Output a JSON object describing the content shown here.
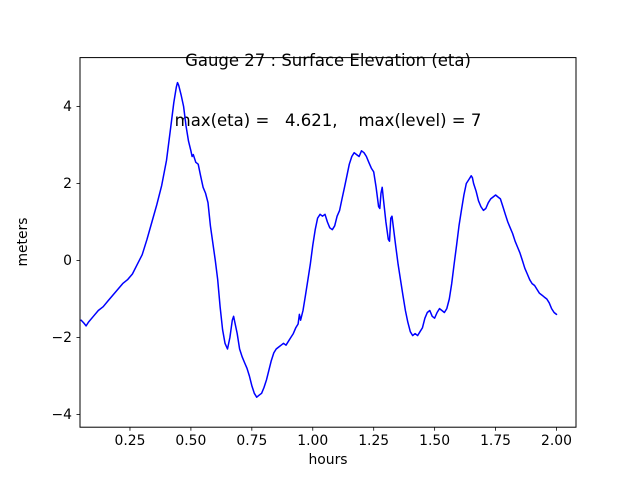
{
  "chart_data": {
    "type": "line",
    "title": "Gauge 27 : Surface Elevation (eta)",
    "subtitle": "max(eta) =   4.621,    max(level) = 7",
    "xlabel": "hours",
    "ylabel": "meters",
    "max_eta": 4.621,
    "max_level": 7,
    "xlim": [
      0.045,
      2.08
    ],
    "ylim": [
      -4.33,
      5.27
    ],
    "line_color": "#0000ff",
    "grid": false,
    "legend": "none",
    "xticks": [
      {
        "value": 0.25,
        "label": "0.25"
      },
      {
        "value": 0.5,
        "label": "0.50"
      },
      {
        "value": 0.75,
        "label": "0.75"
      },
      {
        "value": 1.0,
        "label": "1.00"
      },
      {
        "value": 1.25,
        "label": "1.25"
      },
      {
        "value": 1.5,
        "label": "1.50"
      },
      {
        "value": 1.75,
        "label": "1.75"
      },
      {
        "value": 2.0,
        "label": "2.00"
      }
    ],
    "yticks": [
      {
        "value": -4,
        "label": "−4"
      },
      {
        "value": -2,
        "label": "−2"
      },
      {
        "value": 0,
        "label": "0"
      },
      {
        "value": 2,
        "label": "2"
      },
      {
        "value": 4,
        "label": "4"
      }
    ],
    "series": [
      {
        "name": "eta",
        "points": [
          [
            0.05,
            -1.55
          ],
          [
            0.06,
            -1.62
          ],
          [
            0.07,
            -1.7
          ],
          [
            0.08,
            -1.6
          ],
          [
            0.1,
            -1.45
          ],
          [
            0.12,
            -1.3
          ],
          [
            0.14,
            -1.2
          ],
          [
            0.16,
            -1.05
          ],
          [
            0.18,
            -0.9
          ],
          [
            0.2,
            -0.75
          ],
          [
            0.22,
            -0.6
          ],
          [
            0.24,
            -0.5
          ],
          [
            0.26,
            -0.35
          ],
          [
            0.28,
            -0.1
          ],
          [
            0.3,
            0.15
          ],
          [
            0.32,
            0.55
          ],
          [
            0.34,
            1.0
          ],
          [
            0.36,
            1.45
          ],
          [
            0.38,
            1.95
          ],
          [
            0.4,
            2.6
          ],
          [
            0.42,
            3.6
          ],
          [
            0.43,
            4.1
          ],
          [
            0.44,
            4.5
          ],
          [
            0.445,
            4.62
          ],
          [
            0.45,
            4.55
          ],
          [
            0.46,
            4.3
          ],
          [
            0.47,
            4.0
          ],
          [
            0.48,
            3.5
          ],
          [
            0.49,
            3.1
          ],
          [
            0.5,
            2.85
          ],
          [
            0.505,
            2.7
          ],
          [
            0.51,
            2.75
          ],
          [
            0.52,
            2.55
          ],
          [
            0.53,
            2.5
          ],
          [
            0.54,
            2.2
          ],
          [
            0.55,
            1.9
          ],
          [
            0.56,
            1.75
          ],
          [
            0.57,
            1.5
          ],
          [
            0.58,
            0.9
          ],
          [
            0.6,
            0.0
          ],
          [
            0.61,
            -0.5
          ],
          [
            0.62,
            -1.2
          ],
          [
            0.63,
            -1.8
          ],
          [
            0.64,
            -2.15
          ],
          [
            0.65,
            -2.3
          ],
          [
            0.66,
            -2.0
          ],
          [
            0.67,
            -1.55
          ],
          [
            0.675,
            -1.45
          ],
          [
            0.68,
            -1.6
          ],
          [
            0.69,
            -1.9
          ],
          [
            0.7,
            -2.3
          ],
          [
            0.71,
            -2.5
          ],
          [
            0.72,
            -2.65
          ],
          [
            0.73,
            -2.8
          ],
          [
            0.74,
            -3.0
          ],
          [
            0.75,
            -3.25
          ],
          [
            0.76,
            -3.45
          ],
          [
            0.77,
            -3.55
          ],
          [
            0.78,
            -3.5
          ],
          [
            0.79,
            -3.45
          ],
          [
            0.8,
            -3.3
          ],
          [
            0.81,
            -3.1
          ],
          [
            0.82,
            -2.85
          ],
          [
            0.83,
            -2.6
          ],
          [
            0.84,
            -2.4
          ],
          [
            0.85,
            -2.3
          ],
          [
            0.86,
            -2.25
          ],
          [
            0.87,
            -2.2
          ],
          [
            0.88,
            -2.15
          ],
          [
            0.89,
            -2.2
          ],
          [
            0.9,
            -2.1
          ],
          [
            0.91,
            -2.0
          ],
          [
            0.92,
            -1.9
          ],
          [
            0.93,
            -1.75
          ],
          [
            0.94,
            -1.65
          ],
          [
            0.945,
            -1.4
          ],
          [
            0.95,
            -1.55
          ],
          [
            0.96,
            -1.3
          ],
          [
            0.97,
            -0.9
          ],
          [
            0.98,
            -0.5
          ],
          [
            0.99,
            -0.1
          ],
          [
            1.0,
            0.4
          ],
          [
            1.01,
            0.8
          ],
          [
            1.02,
            1.1
          ],
          [
            1.03,
            1.2
          ],
          [
            1.04,
            1.15
          ],
          [
            1.05,
            1.2
          ],
          [
            1.06,
            1.0
          ],
          [
            1.07,
            0.85
          ],
          [
            1.08,
            0.8
          ],
          [
            1.09,
            0.9
          ],
          [
            1.1,
            1.15
          ],
          [
            1.11,
            1.3
          ],
          [
            1.12,
            1.6
          ],
          [
            1.13,
            1.9
          ],
          [
            1.14,
            2.2
          ],
          [
            1.15,
            2.5
          ],
          [
            1.16,
            2.7
          ],
          [
            1.17,
            2.8
          ],
          [
            1.18,
            2.75
          ],
          [
            1.19,
            2.7
          ],
          [
            1.2,
            2.85
          ],
          [
            1.21,
            2.8
          ],
          [
            1.22,
            2.7
          ],
          [
            1.23,
            2.55
          ],
          [
            1.24,
            2.4
          ],
          [
            1.25,
            2.3
          ],
          [
            1.26,
            1.9
          ],
          [
            1.27,
            1.4
          ],
          [
            1.275,
            1.35
          ],
          [
            1.28,
            1.75
          ],
          [
            1.285,
            1.9
          ],
          [
            1.29,
            1.6
          ],
          [
            1.3,
            1.0
          ],
          [
            1.31,
            0.55
          ],
          [
            1.315,
            0.5
          ],
          [
            1.32,
            1.1
          ],
          [
            1.325,
            1.15
          ],
          [
            1.33,
            0.9
          ],
          [
            1.34,
            0.4
          ],
          [
            1.35,
            -0.1
          ],
          [
            1.36,
            -0.5
          ],
          [
            1.37,
            -0.9
          ],
          [
            1.38,
            -1.3
          ],
          [
            1.39,
            -1.6
          ],
          [
            1.4,
            -1.85
          ],
          [
            1.41,
            -1.95
          ],
          [
            1.42,
            -1.9
          ],
          [
            1.43,
            -1.95
          ],
          [
            1.44,
            -1.85
          ],
          [
            1.45,
            -1.75
          ],
          [
            1.46,
            -1.5
          ],
          [
            1.47,
            -1.35
          ],
          [
            1.48,
            -1.3
          ],
          [
            1.49,
            -1.45
          ],
          [
            1.5,
            -1.5
          ],
          [
            1.51,
            -1.35
          ],
          [
            1.52,
            -1.25
          ],
          [
            1.53,
            -1.3
          ],
          [
            1.54,
            -1.35
          ],
          [
            1.55,
            -1.25
          ],
          [
            1.56,
            -1.0
          ],
          [
            1.57,
            -0.6
          ],
          [
            1.58,
            -0.1
          ],
          [
            1.59,
            0.4
          ],
          [
            1.6,
            0.9
          ],
          [
            1.61,
            1.3
          ],
          [
            1.62,
            1.7
          ],
          [
            1.63,
            2.0
          ],
          [
            1.64,
            2.1
          ],
          [
            1.65,
            2.2
          ],
          [
            1.655,
            2.15
          ],
          [
            1.66,
            2.0
          ],
          [
            1.67,
            1.8
          ],
          [
            1.68,
            1.55
          ],
          [
            1.69,
            1.4
          ],
          [
            1.7,
            1.3
          ],
          [
            1.71,
            1.35
          ],
          [
            1.72,
            1.5
          ],
          [
            1.73,
            1.6
          ],
          [
            1.74,
            1.65
          ],
          [
            1.75,
            1.7
          ],
          [
            1.76,
            1.65
          ],
          [
            1.77,
            1.6
          ],
          [
            1.78,
            1.4
          ],
          [
            1.79,
            1.2
          ],
          [
            1.8,
            1.0
          ],
          [
            1.81,
            0.85
          ],
          [
            1.82,
            0.7
          ],
          [
            1.83,
            0.5
          ],
          [
            1.84,
            0.35
          ],
          [
            1.85,
            0.2
          ],
          [
            1.86,
            0.0
          ],
          [
            1.87,
            -0.2
          ],
          [
            1.88,
            -0.35
          ],
          [
            1.89,
            -0.5
          ],
          [
            1.9,
            -0.6
          ],
          [
            1.91,
            -0.65
          ],
          [
            1.92,
            -0.75
          ],
          [
            1.93,
            -0.85
          ],
          [
            1.94,
            -0.9
          ],
          [
            1.95,
            -0.95
          ],
          [
            1.96,
            -1.0
          ],
          [
            1.97,
            -1.1
          ],
          [
            1.98,
            -1.25
          ],
          [
            1.99,
            -1.35
          ],
          [
            2.0,
            -1.4
          ]
        ]
      }
    ]
  }
}
